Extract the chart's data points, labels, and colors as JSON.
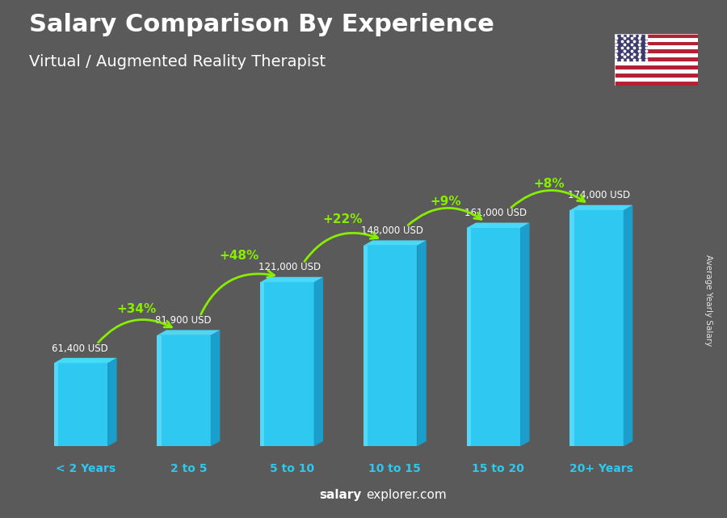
{
  "title1": "Salary Comparison By Experience",
  "title2": "Virtual / Augmented Reality Therapist",
  "categories": [
    "< 2 Years",
    "2 to 5",
    "5 to 10",
    "10 to 15",
    "15 to 20",
    "20+ Years"
  ],
  "values": [
    61400,
    81900,
    121000,
    148000,
    161000,
    174000
  ],
  "labels": [
    "61,400 USD",
    "81,900 USD",
    "121,000 USD",
    "148,000 USD",
    "161,000 USD",
    "174,000 USD"
  ],
  "pct_changes": [
    "+34%",
    "+48%",
    "+22%",
    "+9%",
    "+8%"
  ],
  "bar_front": "#2ec8f0",
  "bar_left_highlight": "#60e0ff",
  "bar_right": "#1a9fcc",
  "bar_top": "#4ad8f8",
  "bg_color": "#5a5a5a",
  "title_color": "#ffffff",
  "label_color": "#ffffff",
  "pct_color": "#88ee00",
  "xlabel_color": "#2ec8f0",
  "ylabel_text": "Average Yearly Salary",
  "footer_salary": "salary",
  "footer_rest": "explorer.com"
}
